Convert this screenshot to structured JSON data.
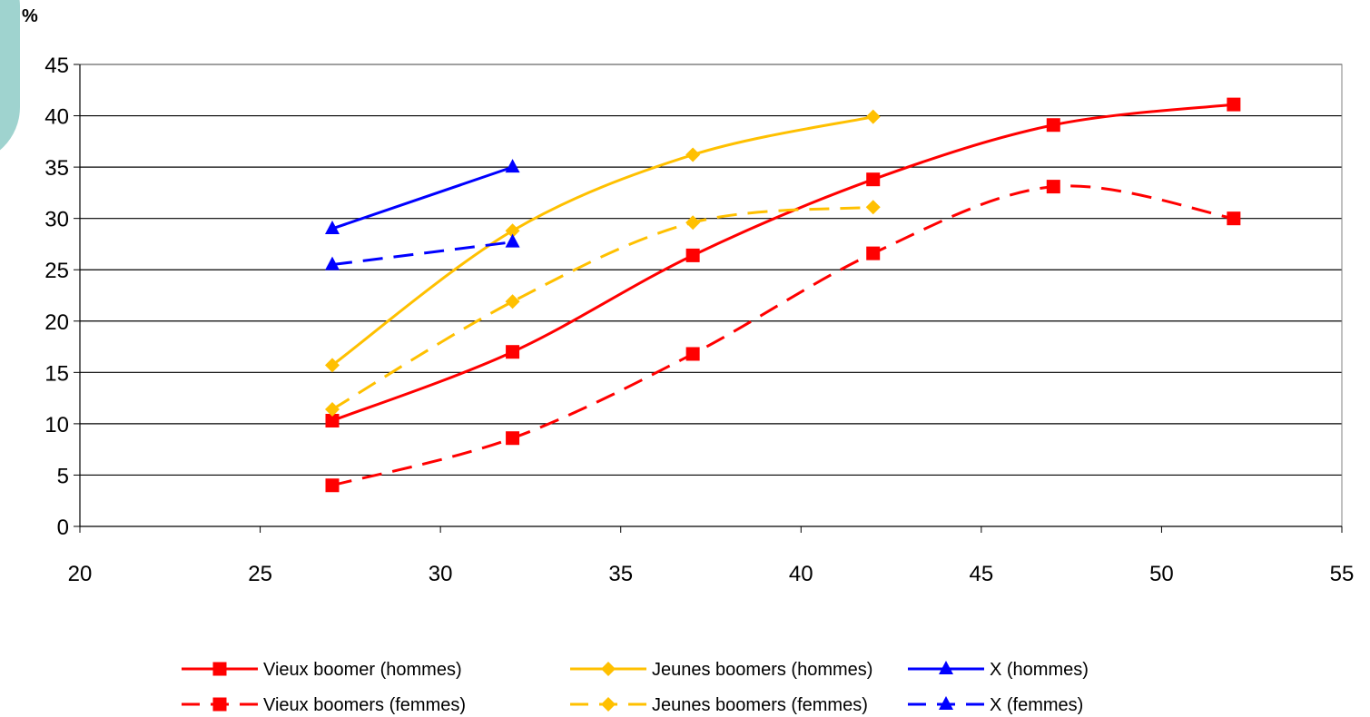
{
  "chart_data": {
    "type": "line",
    "ylabel": "%",
    "xlabel": "",
    "xlim": [
      20,
      55
    ],
    "ylim": [
      0,
      45
    ],
    "x_ticks": [
      20,
      25,
      30,
      35,
      40,
      45,
      50,
      55
    ],
    "y_ticks": [
      0,
      5,
      10,
      15,
      20,
      25,
      30,
      35,
      40,
      45
    ],
    "grid": "horizontal",
    "legend_position": "bottom",
    "series": [
      {
        "name": "Vieux boomer (hommes)",
        "color": "#ff0000",
        "dash": "solid",
        "marker": "square",
        "x": [
          27,
          32,
          37,
          42,
          47,
          52
        ],
        "y": [
          10.3,
          17.0,
          26.4,
          33.8,
          39.1,
          41.1
        ]
      },
      {
        "name": "Vieux boomers (femmes)",
        "color": "#ff0000",
        "dash": "dashed",
        "marker": "square",
        "x": [
          27,
          32,
          37,
          42,
          47,
          52
        ],
        "y": [
          4.0,
          8.6,
          16.8,
          26.6,
          33.1,
          30.0
        ]
      },
      {
        "name": "Jeunes boomers (hommes)",
        "color": "#ffc000",
        "dash": "solid",
        "marker": "diamond",
        "x": [
          27,
          32,
          37,
          42
        ],
        "y": [
          15.7,
          28.8,
          36.2,
          39.9
        ]
      },
      {
        "name": "Jeunes boomers (femmes)",
        "color": "#ffc000",
        "dash": "dashed",
        "marker": "diamond",
        "x": [
          27,
          32,
          37,
          42
        ],
        "y": [
          11.4,
          21.9,
          29.6,
          31.1
        ]
      },
      {
        "name": "X (hommes)",
        "color": "#0000ff",
        "dash": "solid",
        "marker": "triangle",
        "x": [
          27,
          32
        ],
        "y": [
          29.0,
          35.0
        ]
      },
      {
        "name": "X (femmes)",
        "color": "#0000ff",
        "dash": "dashed",
        "marker": "triangle",
        "x": [
          27,
          32
        ],
        "y": [
          25.5,
          27.7
        ]
      }
    ],
    "legend_order": [
      0,
      2,
      4,
      1,
      3,
      5
    ]
  }
}
